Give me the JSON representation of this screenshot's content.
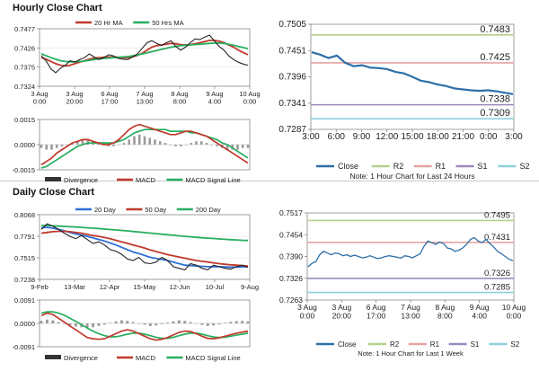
{
  "hourly": {
    "title": "Hourly Close Chart",
    "price_chart": {
      "type": "line",
      "legend": [
        "20 Hr MA",
        "50 Hrs MA"
      ],
      "yticks": [
        "0.7477",
        "0.7426",
        "0.7375",
        "0.7324"
      ],
      "xticks": [
        "3 Aug\n0:00",
        "3 Aug\n20:00",
        "6 Aug\n17:00",
        "7 Aug\n13:00",
        "8 Aug\n8:00",
        "9 Aug\n4:00",
        "10 Aug\n0:00"
      ],
      "ylim": [
        0.7324,
        0.7477
      ],
      "series": [
        {
          "name": "Close",
          "color": "#222222",
          "values": [
            0.7405,
            0.7392,
            0.737,
            0.736,
            0.7372,
            0.738,
            0.7392,
            0.7388,
            0.7395,
            0.74,
            0.741,
            0.7402,
            0.7395,
            0.74,
            0.7408,
            0.7405,
            0.7398,
            0.7396,
            0.7395,
            0.7402,
            0.741,
            0.7425,
            0.744,
            0.7445,
            0.7438,
            0.7432,
            0.744,
            0.7445,
            0.743,
            0.742,
            0.7428,
            0.744,
            0.745,
            0.7448,
            0.7455,
            0.746,
            0.7445,
            0.743,
            0.742,
            0.7405,
            0.7395,
            0.7388,
            0.7383,
            0.738
          ]
        },
        {
          "name": "20 Hr MA",
          "color": "#c0392b",
          "values": [
            0.74,
            0.7396,
            0.739,
            0.7384,
            0.738,
            0.7378,
            0.738,
            0.7384,
            0.7388,
            0.7392,
            0.7396,
            0.7399,
            0.74,
            0.7401,
            0.7402,
            0.7402,
            0.7401,
            0.74,
            0.74,
            0.7402,
            0.7406,
            0.7412,
            0.742,
            0.7428,
            0.7432,
            0.7434,
            0.7436,
            0.7438,
            0.7437,
            0.7435,
            0.7434,
            0.7435,
            0.7437,
            0.744,
            0.7443,
            0.7446,
            0.7446,
            0.7444,
            0.744,
            0.7434,
            0.7428,
            0.742,
            0.7414,
            0.7408
          ]
        },
        {
          "name": "50 Hrs MA",
          "color": "#27ae60",
          "values": [
            0.741,
            0.7405,
            0.74,
            0.7396,
            0.7392,
            0.739,
            0.7389,
            0.7389,
            0.739,
            0.7391,
            0.7393,
            0.7395,
            0.7397,
            0.7398,
            0.7399,
            0.74,
            0.7401,
            0.7402,
            0.7403,
            0.7405,
            0.7407,
            0.741,
            0.7413,
            0.7416,
            0.7419,
            0.7422,
            0.7425,
            0.7428,
            0.743,
            0.7432,
            0.7433,
            0.7434,
            0.7435,
            0.7436,
            0.7437,
            0.7438,
            0.7439,
            0.7439,
            0.7438,
            0.7436,
            0.7433,
            0.743,
            0.7427,
            0.7424
          ]
        }
      ]
    },
    "macd_chart": {
      "type": "line",
      "yticks": [
        "0.0015",
        "0.0000",
        "-0.0015"
      ],
      "ylim": [
        -0.0015,
        0.0015
      ],
      "legend": [
        "Divergence",
        "MACD",
        "MACD Signal Line"
      ],
      "divergence": [
        -0.0002,
        -0.0003,
        -0.0003,
        -0.0002,
        -0.0001,
        0.0,
        0.0001,
        0.0002,
        0.0003,
        0.0003,
        0.0002,
        0.0001,
        0.0,
        -0.0001,
        -0.0001,
        0.0,
        0.0001,
        0.0003,
        0.0005,
        0.0006,
        0.0005,
        0.0004,
        0.0003,
        0.0002,
        0.0001,
        0.0,
        -0.0001,
        -0.0001,
        0.0,
        0.0001,
        0.0002,
        0.0002,
        0.0001,
        0.0,
        -0.0001,
        -0.0002,
        -0.0003,
        -0.0003,
        -0.0003,
        -0.0002,
        -0.0002
      ],
      "macd": [
        -0.0012,
        -0.001,
        -0.0008,
        -0.0005,
        -0.0003,
        -0.0001,
        0.0001,
        0.0002,
        0.0003,
        0.0003,
        0.0002,
        0.0001,
        0.0,
        0.0,
        0.0001,
        0.0003,
        0.0006,
        0.0009,
        0.0011,
        0.0012,
        0.0011,
        0.001,
        0.0009,
        0.0008,
        0.0007,
        0.0006,
        0.0006,
        0.0007,
        0.0008,
        0.0008,
        0.0007,
        0.0006,
        0.0005,
        0.0003,
        0.0001,
        -0.0001,
        -0.0003,
        -0.0005,
        -0.0007,
        -0.0009,
        -0.0011
      ],
      "signal": [
        -0.0014,
        -0.0013,
        -0.0011,
        -0.0009,
        -0.0007,
        -0.0005,
        -0.0003,
        -0.0001,
        0.0,
        0.0001,
        0.0001,
        0.0001,
        0.0001,
        0.0001,
        0.0001,
        0.0002,
        0.0003,
        0.0005,
        0.0007,
        0.0008,
        0.0009,
        0.0009,
        0.0009,
        0.0009,
        0.0009,
        0.0008,
        0.0008,
        0.0008,
        0.0008,
        0.0007,
        0.0007,
        0.0006,
        0.0005,
        0.0004,
        0.0003,
        0.0001,
        0.0,
        -0.0002,
        -0.0004,
        -0.0006,
        -0.0008
      ]
    },
    "pivot_chart": {
      "type": "line",
      "yticks": [
        "0.7505",
        "0.7451",
        "0.7396",
        "0.7341",
        "0.7287"
      ],
      "ylim": [
        0.7287,
        0.7505
      ],
      "xticks": [
        "3:00",
        "6:00",
        "9:00",
        "12:00",
        "15:00",
        "18:00",
        "21:00",
        "0:00",
        "3:00"
      ],
      "close": [
        0.7447,
        0.7442,
        0.7435,
        0.744,
        0.7425,
        0.7418,
        0.742,
        0.7415,
        0.7414,
        0.7412,
        0.7406,
        0.7403,
        0.7396,
        0.7388,
        0.7385,
        0.738,
        0.7377,
        0.7372,
        0.737,
        0.7368,
        0.7367,
        0.7368,
        0.7366,
        0.7363,
        0.736
      ],
      "levels": [
        {
          "name": "R2",
          "value": 0.7483,
          "label": "0.7483",
          "color": "#b5d08f"
        },
        {
          "name": "R1",
          "value": 0.7425,
          "label": "0.7425",
          "color": "#e5a3a3"
        },
        {
          "name": "S1",
          "value": 0.7338,
          "label": "0.7338",
          "color": "#9b89bf"
        },
        {
          "name": "S2",
          "value": 0.7309,
          "label": "0.7309",
          "color": "#8fd0dc"
        }
      ],
      "legend": [
        "Close",
        "R2",
        "R1",
        "S1",
        "S2"
      ],
      "note": "Note: 1 Hour Chart for Last 24 Hours"
    }
  },
  "daily": {
    "title": "Daily Close Chart",
    "price_chart": {
      "type": "line",
      "legend": [
        "20 Day",
        "50 Day",
        "200 Day"
      ],
      "yticks": [
        "0.8068",
        "0.7791",
        "0.7515",
        "0.7238"
      ],
      "ylim": [
        0.7238,
        0.8068
      ],
      "xticks": [
        "9-Feb",
        "13-Mar",
        "12-Apr",
        "15-May",
        "12-Jun",
        "10-Jul",
        "9-Aug"
      ],
      "series": [
        {
          "name": "Close",
          "color": "#222222",
          "values": [
            0.788,
            0.795,
            0.792,
            0.788,
            0.783,
            0.779,
            0.776,
            0.78,
            0.775,
            0.77,
            0.772,
            0.768,
            0.762,
            0.76,
            0.756,
            0.75,
            0.748,
            0.752,
            0.745,
            0.744,
            0.746,
            0.752,
            0.748,
            0.74,
            0.738,
            0.736,
            0.744,
            0.742,
            0.738,
            0.736,
            0.742,
            0.74,
            0.738,
            0.737,
            0.74,
            0.742,
            0.739
          ]
        },
        {
          "name": "20 Day",
          "color": "#2e6fd6",
          "values": [
            0.79,
            0.7905,
            0.7895,
            0.788,
            0.786,
            0.784,
            0.782,
            0.7805,
            0.779,
            0.777,
            0.775,
            0.773,
            0.7705,
            0.768,
            0.765,
            0.762,
            0.759,
            0.757,
            0.7545,
            0.752,
            0.7505,
            0.7495,
            0.748,
            0.746,
            0.744,
            0.742,
            0.7415,
            0.741,
            0.7405,
            0.74,
            0.74,
            0.74,
            0.7398,
            0.7395,
            0.7396,
            0.7398,
            0.74
          ]
        },
        {
          "name": "50 Day",
          "color": "#c0392b",
          "values": [
            0.783,
            0.784,
            0.785,
            0.7855,
            0.7855,
            0.785,
            0.784,
            0.783,
            0.7815,
            0.78,
            0.779,
            0.7775,
            0.776,
            0.774,
            0.772,
            0.77,
            0.768,
            0.766,
            0.764,
            0.7615,
            0.7595,
            0.7575,
            0.7555,
            0.754,
            0.7525,
            0.751,
            0.7495,
            0.748,
            0.747,
            0.746,
            0.745,
            0.744,
            0.7432,
            0.7425,
            0.742,
            0.7415,
            0.741
          ]
        },
        {
          "name": "200 Day",
          "color": "#27ae60",
          "values": [
            0.793,
            0.7928,
            0.7925,
            0.7922,
            0.7918,
            0.7914,
            0.791,
            0.7906,
            0.79,
            0.7895,
            0.789,
            0.7884,
            0.7878,
            0.7872,
            0.7866,
            0.786,
            0.7853,
            0.7846,
            0.7839,
            0.7832,
            0.7825,
            0.7818,
            0.7811,
            0.7804,
            0.7797,
            0.779,
            0.7784,
            0.7778,
            0.7772,
            0.7767,
            0.7762,
            0.7757,
            0.7752,
            0.7748,
            0.7744,
            0.774,
            0.7737
          ]
        }
      ]
    },
    "macd_chart": {
      "type": "line",
      "yticks": [
        "0.0091",
        "0.0000",
        "-0.0091"
      ],
      "ylim": [
        -0.0091,
        0.0091
      ],
      "legend": [
        "Divergence",
        "MACD",
        "MACD Signal Line"
      ],
      "divergence": [
        0.001,
        0.0015,
        0.0012,
        0.0005,
        0.0,
        -0.0008,
        -0.0012,
        -0.0015,
        -0.0018,
        -0.0015,
        -0.001,
        -0.0005,
        0.0002,
        0.0008,
        0.0012,
        0.001,
        0.0005,
        0.0,
        -0.0005,
        -0.001,
        -0.0008,
        -0.0003,
        0.0003,
        0.0008,
        0.0012,
        0.001,
        0.0005,
        0.0,
        -0.0006,
        -0.001,
        -0.0008,
        -0.0004,
        0.0002,
        0.0006,
        0.0009,
        0.001,
        0.0008
      ],
      "macd": [
        0.003,
        0.004,
        0.0035,
        0.002,
        0.0005,
        -0.001,
        -0.0025,
        -0.004,
        -0.0055,
        -0.006,
        -0.0062,
        -0.006,
        -0.005,
        -0.004,
        -0.003,
        -0.0025,
        -0.003,
        -0.004,
        -0.005,
        -0.006,
        -0.0065,
        -0.0062,
        -0.0055,
        -0.0045,
        -0.0035,
        -0.003,
        -0.0032,
        -0.004,
        -0.005,
        -0.0058,
        -0.006,
        -0.0056,
        -0.005,
        -0.0044,
        -0.0038,
        -0.0034,
        -0.003
      ],
      "signal": [
        0.004,
        0.0045,
        0.0045,
        0.004,
        0.0032,
        0.002,
        0.0008,
        -0.0005,
        -0.0018,
        -0.003,
        -0.004,
        -0.0048,
        -0.0052,
        -0.0052,
        -0.0048,
        -0.0042,
        -0.0038,
        -0.0038,
        -0.0042,
        -0.0048,
        -0.0054,
        -0.0058,
        -0.0058,
        -0.0054,
        -0.0048,
        -0.0042,
        -0.0038,
        -0.0038,
        -0.0042,
        -0.0048,
        -0.0053,
        -0.0055,
        -0.0054,
        -0.005,
        -0.0046,
        -0.0042,
        -0.0038
      ]
    },
    "pivot_chart": {
      "type": "line",
      "yticks": [
        "0.7517",
        "0.7454",
        "0.7390",
        "0.7326",
        "0.7263"
      ],
      "ylim": [
        0.7263,
        0.7517
      ],
      "xticks": [
        "3 Aug\n0:00",
        "3 Aug\n20:00",
        "6 Aug\n17:00",
        "7 Aug\n13:00",
        "8 Aug\n8:00",
        "9 Aug\n4:00",
        "10 Aug\n0:00"
      ],
      "close": [
        0.736,
        0.737,
        0.7375,
        0.7395,
        0.7405,
        0.74,
        0.7395,
        0.74,
        0.7398,
        0.7392,
        0.7395,
        0.739,
        0.7394,
        0.739,
        0.7386,
        0.7388,
        0.7392,
        0.7388,
        0.7384,
        0.7386,
        0.739,
        0.7392,
        0.739,
        0.7388,
        0.7385,
        0.7392,
        0.739,
        0.7386,
        0.7392,
        0.7398,
        0.742,
        0.7435,
        0.743,
        0.7425,
        0.7432,
        0.7428,
        0.7415,
        0.7412,
        0.7405,
        0.7408,
        0.7415,
        0.7425,
        0.744,
        0.7445,
        0.7435,
        0.743,
        0.744,
        0.7428,
        0.7418,
        0.7405,
        0.7398,
        0.739,
        0.7382,
        0.7378
      ],
      "levels": [
        {
          "name": "R2",
          "value": 0.7495,
          "label": "0.7495",
          "color": "#b5d08f"
        },
        {
          "name": "R1",
          "value": 0.7431,
          "label": "0.7431",
          "color": "#e5a3a3"
        },
        {
          "name": "S1",
          "value": 0.7326,
          "label": "0.7326",
          "color": "#9b89bf"
        },
        {
          "name": "S2",
          "value": 0.7285,
          "label": "0.7285",
          "color": "#8fd0dc"
        }
      ],
      "legend": [
        "Close",
        "R2",
        "R1",
        "S1",
        "S2"
      ],
      "note": "Note: 1 Hour Chart for Last 1 Week"
    }
  },
  "colors": {
    "close": "#222222",
    "ma20": "#c0392b",
    "ma50": "#27ae60",
    "ma20d": "#2e6fd6",
    "macd": "#c0392b",
    "signal": "#27ae60",
    "divergence": "#9a9a9a",
    "pivot_close": "#2e6fa7"
  },
  "chart_data": [
    {
      "type": "line",
      "title": "Hourly Close Chart",
      "series": [
        "Close",
        "20 Hr MA",
        "50 Hrs MA"
      ],
      "ylim": [
        0.7324,
        0.7477
      ]
    },
    {
      "type": "line",
      "title": "Hourly Close Chart",
      "series": [
        "Divergence",
        "MACD",
        "MACD Signal Line"
      ],
      "ylim": [
        -0.0015,
        0.0015
      ]
    },
    {
      "type": "line",
      "note": "Note: 1 Hour Chart for Last 24 Hours",
      "series": [
        "Close",
        "R2",
        "R1",
        "S1",
        "S2"
      ],
      "ylim": [
        0.7287,
        0.7505
      ]
    },
    {
      "type": "line",
      "title": "Daily Close Chart",
      "series": [
        "Close",
        "20 Day",
        "50 Day",
        "200 Day"
      ],
      "ylim": [
        0.7238,
        0.8068
      ]
    },
    {
      "type": "line",
      "title": "Daily Close Chart",
      "series": [
        "Divergence",
        "MACD",
        "MACD Signal Line"
      ],
      "ylim": [
        -0.0091,
        0.0091
      ]
    },
    {
      "type": "line",
      "note": "Note: 1 Hour Chart for Last 1 Week",
      "series": [
        "Close",
        "R2",
        "R1",
        "S1",
        "S2"
      ],
      "ylim": [
        0.7263,
        0.7517
      ]
    }
  ]
}
